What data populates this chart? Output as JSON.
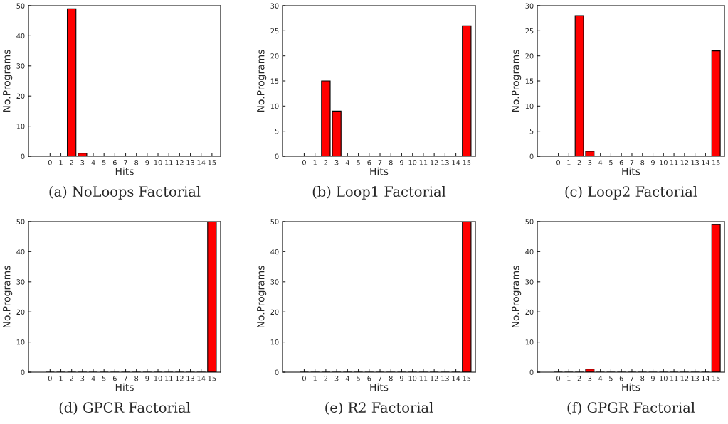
{
  "chart_data": [
    {
      "type": "bar",
      "title": "(a) NoLoops Factorial",
      "xlabel": "Hits",
      "ylabel": "No.Programs",
      "x": [
        0,
        1,
        2,
        3,
        4,
        5,
        6,
        7,
        8,
        9,
        10,
        11,
        12,
        13,
        14,
        15
      ],
      "values": [
        0,
        0,
        49,
        1,
        0,
        0,
        0,
        0,
        0,
        0,
        0,
        0,
        0,
        0,
        0,
        0
      ],
      "color": "#ff0000",
      "xlim": [
        -2,
        15.8
      ],
      "xticks": [
        0,
        1,
        2,
        3,
        4,
        5,
        6,
        7,
        8,
        9,
        10,
        11,
        12,
        13,
        14,
        15
      ],
      "ylim": [
        0,
        50
      ],
      "yticks": [
        0,
        10,
        20,
        30,
        40,
        50
      ],
      "grid": false,
      "legend": false
    },
    {
      "type": "bar",
      "title": "(b) Loop1 Factorial",
      "xlabel": "Hits",
      "ylabel": "No.Programs",
      "x": [
        0,
        1,
        2,
        3,
        4,
        5,
        6,
        7,
        8,
        9,
        10,
        11,
        12,
        13,
        14,
        15
      ],
      "values": [
        0,
        0,
        15,
        9,
        0,
        0,
        0,
        0,
        0,
        0,
        0,
        0,
        0,
        0,
        0,
        26
      ],
      "color": "#ff0000",
      "xlim": [
        -2,
        15.8
      ],
      "xticks": [
        0,
        1,
        2,
        3,
        4,
        5,
        6,
        7,
        8,
        9,
        10,
        11,
        12,
        13,
        14,
        15
      ],
      "ylim": [
        0,
        30
      ],
      "yticks": [
        0,
        5,
        10,
        15,
        20,
        25,
        30
      ],
      "grid": false,
      "legend": false
    },
    {
      "type": "bar",
      "title": "(c) Loop2 Factorial",
      "xlabel": "Hits",
      "ylabel": "No.Programs",
      "x": [
        0,
        1,
        2,
        3,
        4,
        5,
        6,
        7,
        8,
        9,
        10,
        11,
        12,
        13,
        14,
        15
      ],
      "values": [
        0,
        0,
        28,
        1,
        0,
        0,
        0,
        0,
        0,
        0,
        0,
        0,
        0,
        0,
        0,
        21
      ],
      "color": "#ff0000",
      "xlim": [
        -2,
        15.8
      ],
      "xticks": [
        0,
        1,
        2,
        3,
        4,
        5,
        6,
        7,
        8,
        9,
        10,
        11,
        12,
        13,
        14,
        15
      ],
      "ylim": [
        0,
        30
      ],
      "yticks": [
        0,
        5,
        10,
        15,
        20,
        25,
        30
      ],
      "grid": false,
      "legend": false
    },
    {
      "type": "bar",
      "title": "(d) GPCR Factorial",
      "xlabel": "Hits",
      "ylabel": "No.Programs",
      "x": [
        0,
        1,
        2,
        3,
        4,
        5,
        6,
        7,
        8,
        9,
        10,
        11,
        12,
        13,
        14,
        15
      ],
      "values": [
        0,
        0,
        0,
        0,
        0,
        0,
        0,
        0,
        0,
        0,
        0,
        0,
        0,
        0,
        0,
        50
      ],
      "color": "#ff0000",
      "xlim": [
        -2,
        15.8
      ],
      "xticks": [
        0,
        1,
        2,
        3,
        4,
        5,
        6,
        7,
        8,
        9,
        10,
        11,
        12,
        13,
        14,
        15
      ],
      "ylim": [
        0,
        50
      ],
      "yticks": [
        0,
        10,
        20,
        30,
        40,
        50
      ],
      "grid": false,
      "legend": false
    },
    {
      "type": "bar",
      "title": "(e) R2 Factorial",
      "xlabel": "Hits",
      "ylabel": "No.Programs",
      "x": [
        0,
        1,
        2,
        3,
        4,
        5,
        6,
        7,
        8,
        9,
        10,
        11,
        12,
        13,
        14,
        15
      ],
      "values": [
        0,
        0,
        0,
        0,
        0,
        0,
        0,
        0,
        0,
        0,
        0,
        0,
        0,
        0,
        0,
        50
      ],
      "color": "#ff0000",
      "xlim": [
        -2,
        15.8
      ],
      "xticks": [
        0,
        1,
        2,
        3,
        4,
        5,
        6,
        7,
        8,
        9,
        10,
        11,
        12,
        13,
        14,
        15
      ],
      "ylim": [
        0,
        50
      ],
      "yticks": [
        0,
        10,
        20,
        30,
        40,
        50
      ],
      "grid": false,
      "legend": false
    },
    {
      "type": "bar",
      "title": "(f) GPGR Factorial",
      "xlabel": "Hits",
      "ylabel": "No.Programs",
      "x": [
        0,
        1,
        2,
        3,
        4,
        5,
        6,
        7,
        8,
        9,
        10,
        11,
        12,
        13,
        14,
        15
      ],
      "values": [
        0,
        0,
        0,
        1,
        0,
        0,
        0,
        0,
        0,
        0,
        0,
        0,
        0,
        0,
        0,
        49
      ],
      "color": "#ff0000",
      "xlim": [
        -2,
        15.8
      ],
      "xticks": [
        0,
        1,
        2,
        3,
        4,
        5,
        6,
        7,
        8,
        9,
        10,
        11,
        12,
        13,
        14,
        15
      ],
      "ylim": [
        0,
        50
      ],
      "yticks": [
        0,
        10,
        20,
        30,
        40,
        50
      ],
      "grid": false,
      "legend": false
    }
  ]
}
